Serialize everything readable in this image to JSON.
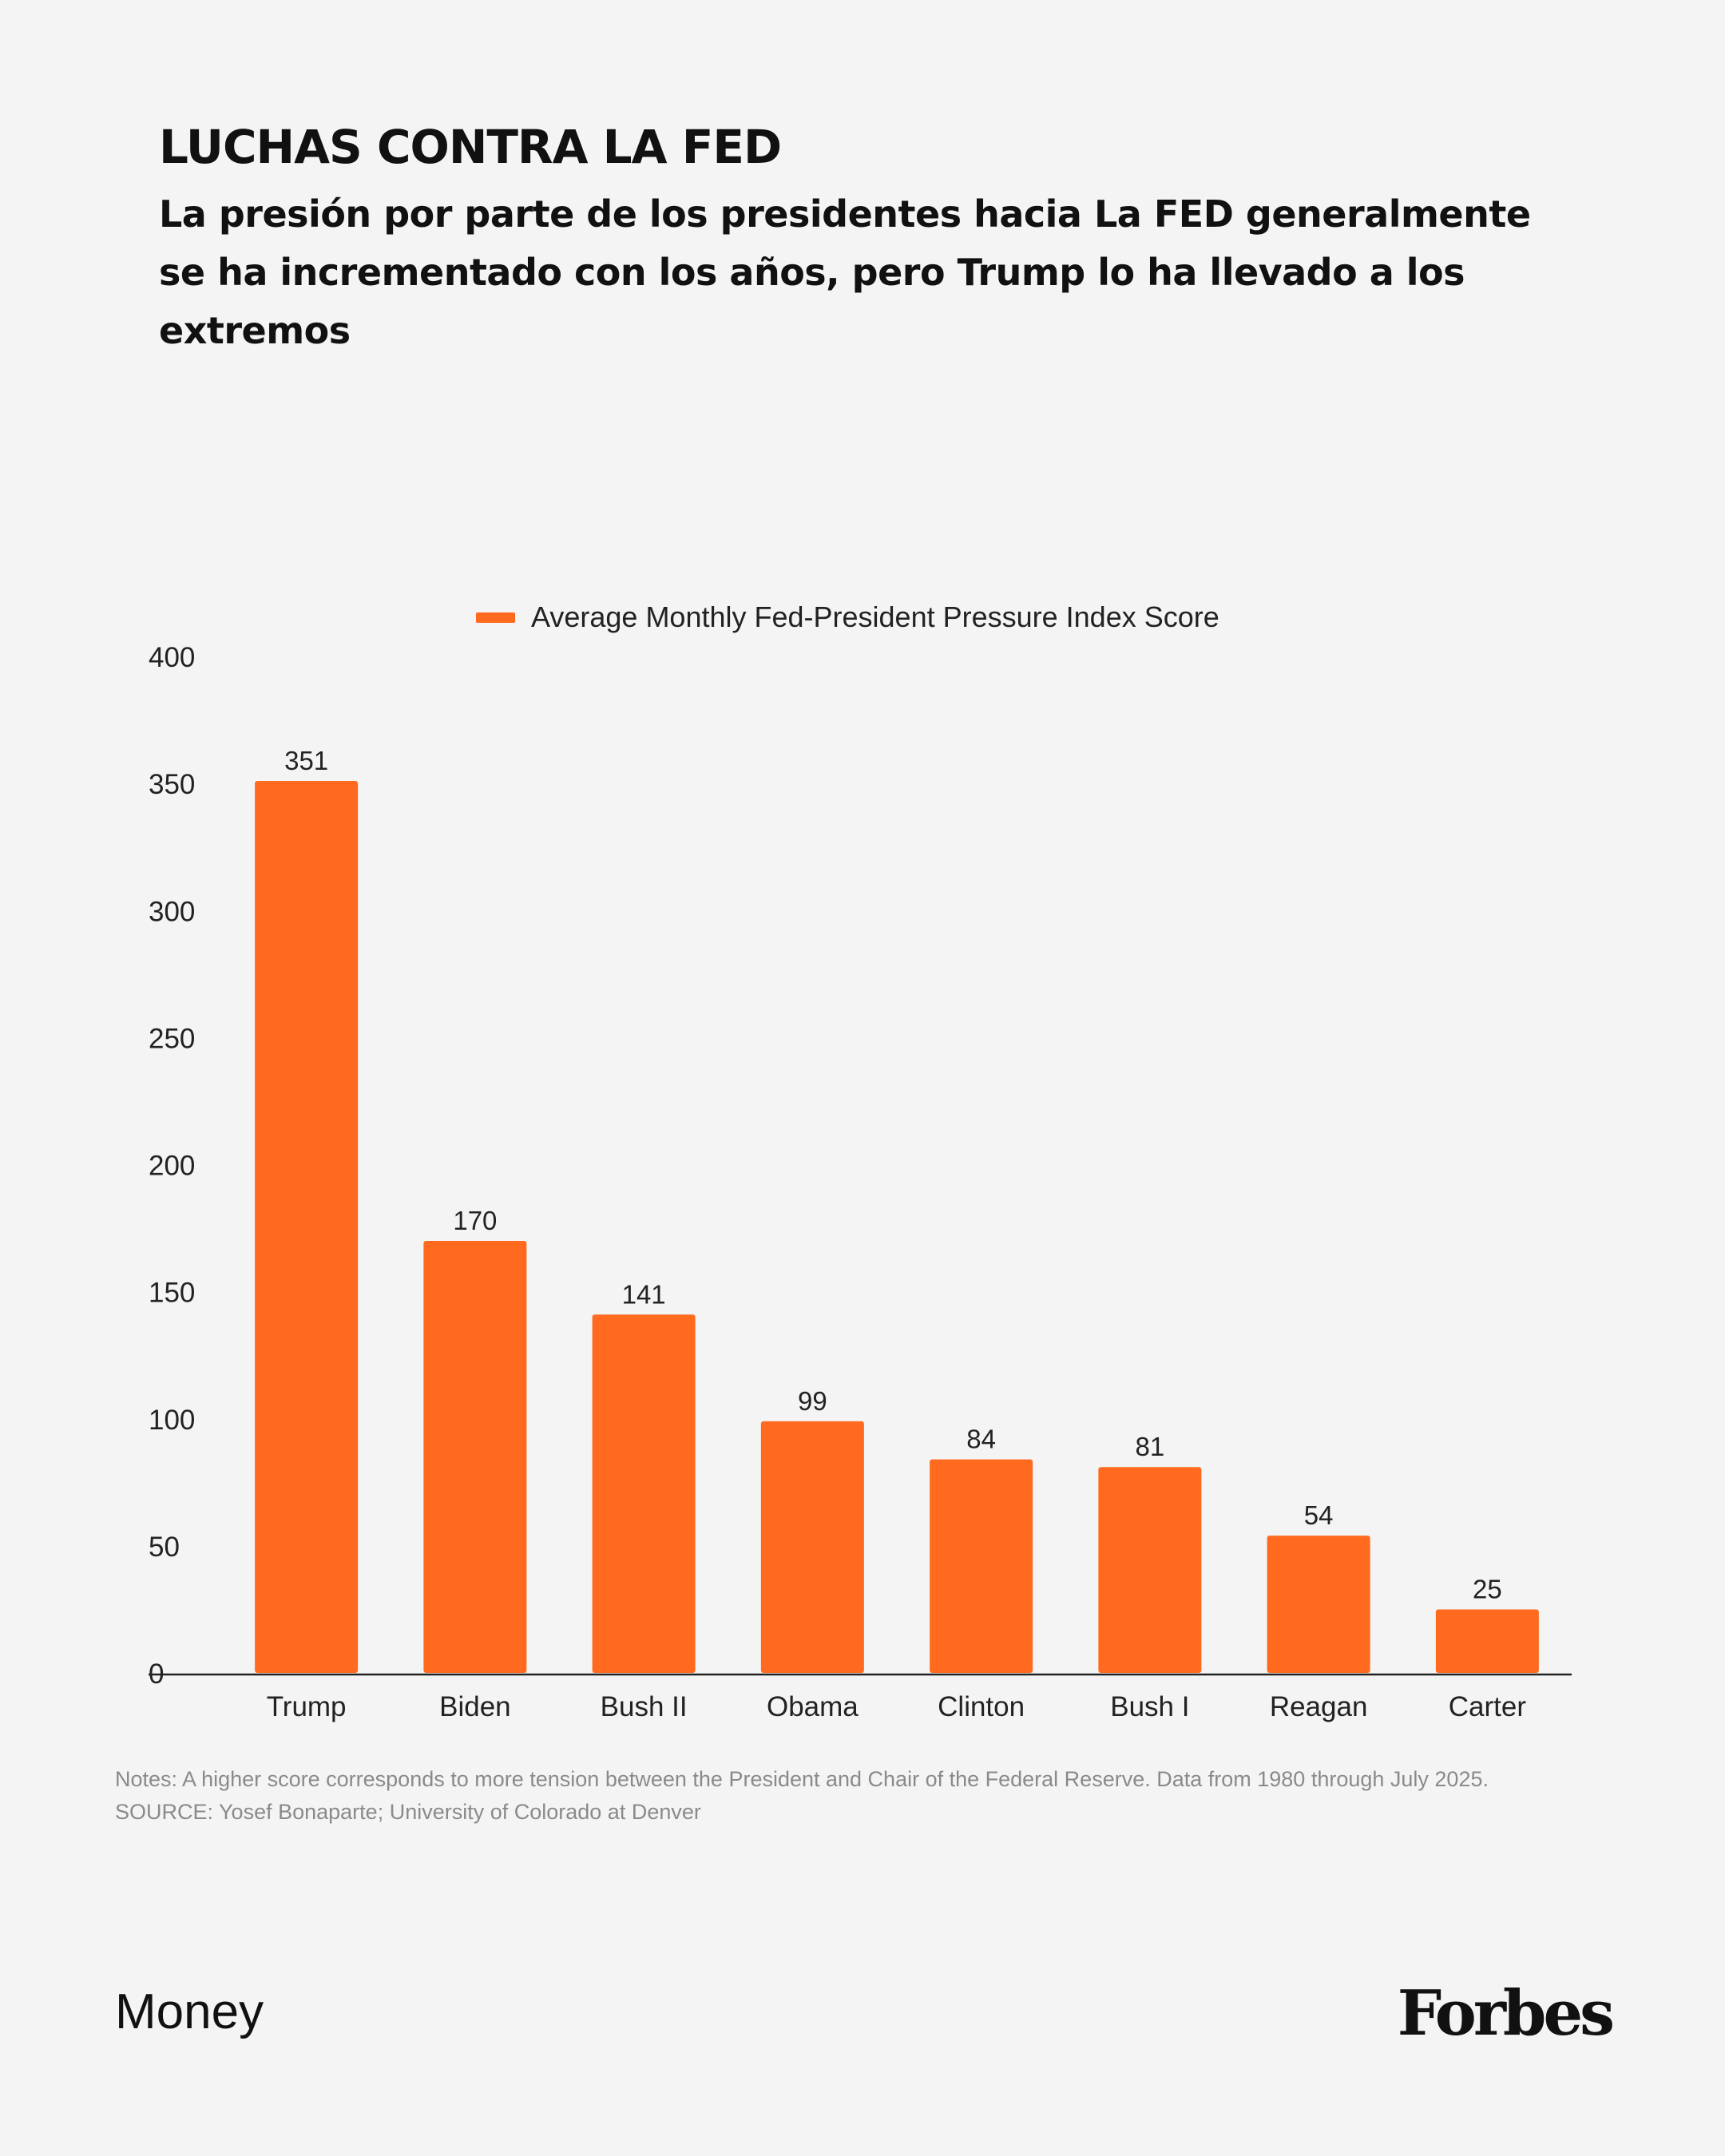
{
  "header": {
    "title": "LUCHAS CONTRA LA FED",
    "subtitle": "La presión por parte de los presidentes hacia La FED generalmente se ha incrementado con los años, pero Trump lo ha llevado a los extremos"
  },
  "colors": {
    "bar": "#ff6a1f",
    "axis": "#222222",
    "background": "#f4f4f4"
  },
  "chart_data": {
    "type": "bar",
    "title": "",
    "xlabel": "",
    "ylabel": "",
    "categories": [
      "Trump",
      "Biden",
      "Bush II",
      "Obama",
      "Clinton",
      "Bush I",
      "Reagan",
      "Carter"
    ],
    "series": [
      {
        "name": "Average Monthly Fed-President Pressure Index Score",
        "values": [
          351,
          170,
          141,
          99,
          84,
          81,
          54,
          25
        ]
      }
    ],
    "ylim": [
      0,
      400
    ],
    "yticks": [
      0,
      50,
      100,
      150,
      200,
      250,
      300,
      350,
      400
    ],
    "grid": false,
    "legend": "top-center",
    "data_labels": true
  },
  "notes": {
    "line1": "Notes: A higher score corresponds to more tension between the President and Chair of the Federal Reserve. Data from 1980 through July 2025.",
    "line2": "SOURCE: Yosef Bonaparte; University of Colorado at Denver"
  },
  "footer": {
    "section": "Money",
    "brand": "Forbes"
  }
}
